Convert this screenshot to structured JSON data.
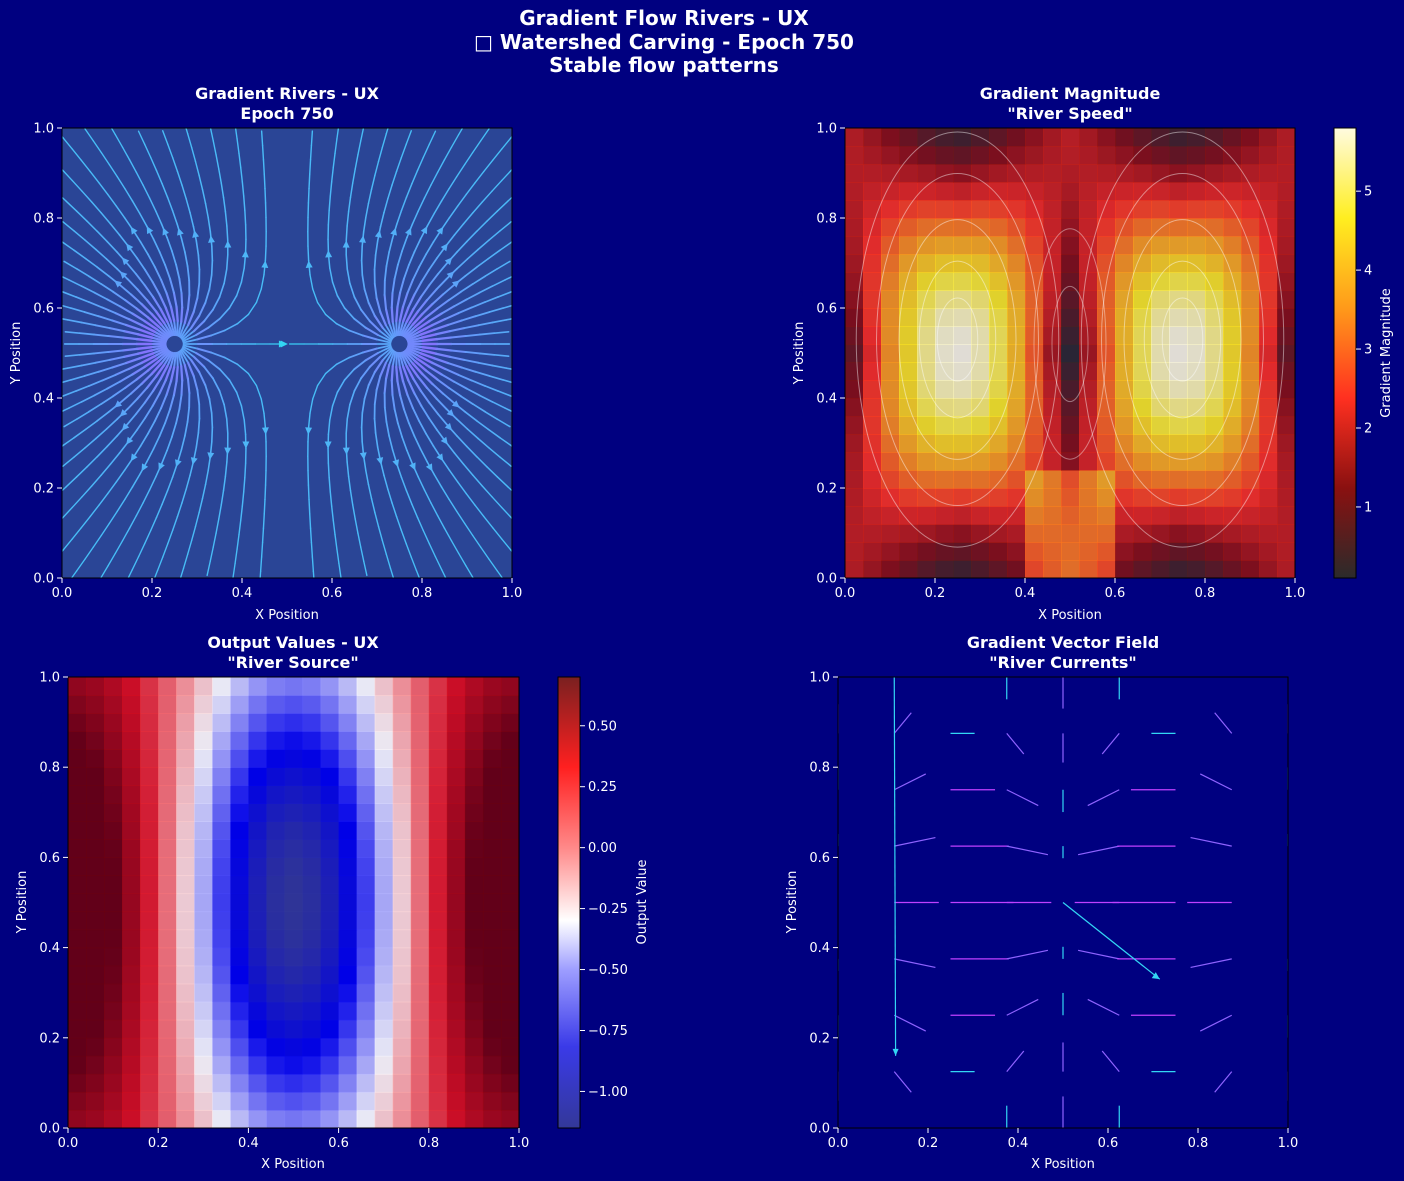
{
  "figure": {
    "title_lines": [
      "Gradient Flow Rivers - UX",
      "□ Watershed Carving - Epoch 750",
      "Stable flow patterns"
    ],
    "background": "#000080"
  },
  "chart_data": [
    {
      "type": "streamplot",
      "title_lines": [
        "Gradient Rivers - UX",
        "Epoch 750"
      ],
      "xlabel": "X Position",
      "ylabel": "Y Position",
      "xlim": [
        0,
        1
      ],
      "ylim": [
        0,
        1
      ],
      "xticks": [
        "0.0",
        "0.2",
        "0.4",
        "0.6",
        "0.8",
        "1.0"
      ],
      "yticks": [
        "0.0",
        "0.2",
        "0.4",
        "0.6",
        "0.8",
        "1.0"
      ],
      "colors": {
        "background": "#2a4596",
        "low": "#33d6f4",
        "mid": "#8f63ff",
        "high": "#ff00ff"
      },
      "sources": [
        {
          "x": 0.25,
          "y": 0.52
        },
        {
          "x": 0.75,
          "y": 0.52
        }
      ],
      "saddle": {
        "x": 0.5,
        "y": 0.52
      }
    },
    {
      "type": "heatmap",
      "title_lines": [
        "Gradient Magnitude",
        "\"River Speed\""
      ],
      "xlabel": "X Position",
      "ylabel": "Y Position",
      "xlim": [
        0,
        1
      ],
      "ylim": [
        0,
        1
      ],
      "xticks": [
        "0.0",
        "0.2",
        "0.4",
        "0.6",
        "0.8",
        "1.0"
      ],
      "yticks": [
        "0.0",
        "0.2",
        "0.4",
        "0.6",
        "0.8",
        "1.0"
      ],
      "colormap": "hot",
      "grid": 25,
      "peaks": [
        {
          "x": 0.25,
          "y": 0.53,
          "value": 5.8
        },
        {
          "x": 0.75,
          "y": 0.53,
          "value": 5.8
        }
      ],
      "value_range": [
        0.1,
        5.8
      ],
      "contours": true,
      "colorbar": {
        "label": "Gradient Magnitude",
        "ticks": [
          "1",
          "2",
          "3",
          "4",
          "5"
        ],
        "tick_values": [
          1,
          2,
          3,
          4,
          5
        ]
      }
    },
    {
      "type": "heatmap",
      "title_lines": [
        "Output Values - UX",
        "\"River Source\""
      ],
      "xlabel": "X Position",
      "ylabel": "Y Position",
      "xlim": [
        0,
        1
      ],
      "ylim": [
        0,
        1
      ],
      "xticks": [
        "0.0",
        "0.2",
        "0.4",
        "0.6",
        "0.8",
        "1.0"
      ],
      "yticks": [
        "0.0",
        "0.2",
        "0.4",
        "0.6",
        "0.8",
        "1.0"
      ],
      "colormap": "seismic",
      "grid": 25,
      "value_range": [
        -1.15,
        0.7
      ],
      "minimum": {
        "x": 0.5,
        "y": 0.5,
        "value": -1.15
      },
      "colorbar": {
        "label": "Output Value",
        "ticks": [
          "−1.00",
          "−0.75",
          "−0.50",
          "−0.25",
          "0.00",
          "0.25",
          "0.50"
        ],
        "tick_values": [
          -1.0,
          -0.75,
          -0.5,
          -0.25,
          0.0,
          0.25,
          0.5
        ]
      }
    },
    {
      "type": "quiver",
      "title_lines": [
        "Gradient Vector Field",
        "\"River Currents\""
      ],
      "xlabel": "X Position",
      "ylabel": "Y Position",
      "xlim": [
        0,
        1
      ],
      "ylim": [
        0,
        1
      ],
      "xticks": [
        "0.0",
        "0.2",
        "0.4",
        "0.6",
        "0.8",
        "1.0"
      ],
      "yticks": [
        "0.0",
        "0.2",
        "0.4",
        "0.6",
        "0.8",
        "1.0"
      ],
      "grid_positions": [
        0.0,
        0.125,
        0.25,
        0.375,
        0.5,
        0.625,
        0.75,
        0.875,
        1.0
      ],
      "colors": {
        "low": "#33d6f4",
        "mid": "#8f63ff",
        "high": "#c040ff"
      }
    }
  ]
}
